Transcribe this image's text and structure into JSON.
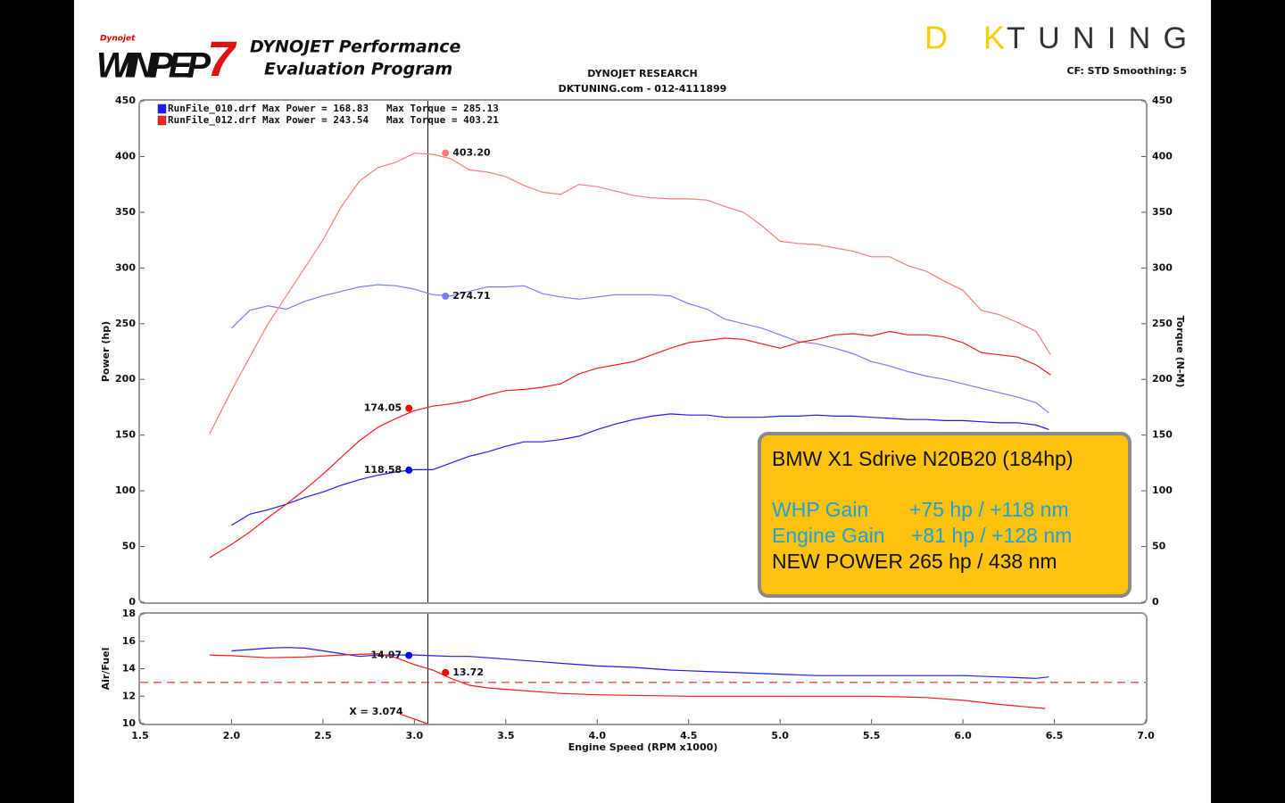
{
  "header": {
    "logo_small": "Dynojet",
    "logo": "WINPEP",
    "logo_number": "7",
    "program_1": "DYNOJET Performance",
    "program_2": "Evaluation Program",
    "brand_1": "DK",
    "brand_2": "TUNING",
    "settings": "CF: STD  Smoothing: 5"
  },
  "chart_data": [
    {
      "type": "line",
      "title": "DYNOJET RESEARCH",
      "subtitle": "DKTUNING.com - 012-4111899",
      "ylabel": "Power (hp)",
      "y2label": "Torque (N-M)",
      "xlim": [
        1.5,
        7
      ],
      "ylim": [
        0,
        450
      ],
      "yticks": [
        0,
        50,
        100,
        150,
        200,
        250,
        300,
        350,
        400,
        450
      ],
      "y2lim": [
        0,
        450
      ],
      "y2ticks": [
        0,
        50,
        100,
        150,
        200,
        250,
        300,
        350,
        400,
        450
      ],
      "cursor": 3.074,
      "legend": [
        {
          "color": "#1a1aff",
          "power": "RunFile_010.drf Max Power = 168.83",
          "torque": "Max Torque = 285.13"
        },
        {
          "color": "#ff2020",
          "power": "RunFile_012.drf Max Power = 243.54",
          "torque": "Max Torque = 403.21"
        }
      ],
      "series": [
        {
          "color": "#1a1aff",
          "x": [
            2.0,
            2.1,
            2.2,
            2.3,
            2.4,
            2.5,
            2.6,
            2.7,
            2.8,
            2.9,
            3.0,
            3.1,
            3.2,
            3.3,
            3.4,
            3.5,
            3.6,
            3.7,
            3.8,
            3.9,
            4.0,
            4.1,
            4.2,
            4.3,
            4.4,
            4.5,
            4.6,
            4.7,
            4.8,
            4.9,
            5.0,
            5.1,
            5.2,
            5.3,
            5.4,
            5.5,
            5.6,
            5.7,
            5.8,
            5.9,
            6.0,
            6.1,
            6.2,
            6.3,
            6.4,
            6.47
          ],
          "values": [
            69,
            79,
            83,
            88,
            94,
            99,
            105,
            110,
            114,
            117,
            119,
            119,
            125,
            131,
            135,
            140,
            144,
            144,
            146,
            149,
            155,
            160,
            164,
            167,
            169,
            168,
            168,
            166,
            166,
            166,
            167,
            167,
            168,
            167,
            167,
            166,
            165,
            164,
            164,
            163,
            163,
            162,
            161,
            161,
            159,
            155
          ]
        },
        {
          "color": "#7a7aff",
          "axis": "y2",
          "x": [
            2.0,
            2.1,
            2.2,
            2.3,
            2.4,
            2.5,
            2.6,
            2.7,
            2.8,
            2.9,
            3.0,
            3.1,
            3.2,
            3.3,
            3.4,
            3.5,
            3.6,
            3.7,
            3.8,
            3.9,
            4.0,
            4.1,
            4.2,
            4.3,
            4.4,
            4.5,
            4.6,
            4.7,
            4.8,
            4.9,
            5.0,
            5.1,
            5.2,
            5.3,
            5.4,
            5.5,
            5.6,
            5.7,
            5.8,
            5.9,
            6.0,
            6.1,
            6.2,
            6.3,
            6.4,
            6.47
          ],
          "values": [
            246,
            262,
            266,
            263,
            270,
            275,
            279,
            283,
            285,
            284,
            281,
            276,
            275,
            279,
            283,
            283,
            284,
            277,
            274,
            272,
            274,
            276,
            276,
            276,
            275,
            268,
            263,
            254,
            250,
            246,
            240,
            234,
            232,
            228,
            223,
            216,
            212,
            207,
            203,
            200,
            196,
            192,
            188,
            184,
            179,
            170
          ]
        },
        {
          "color": "#ff1a1a",
          "x": [
            1.88,
            2.0,
            2.1,
            2.2,
            2.3,
            2.4,
            2.5,
            2.6,
            2.7,
            2.8,
            2.9,
            3.0,
            3.1,
            3.2,
            3.3,
            3.4,
            3.5,
            3.6,
            3.7,
            3.8,
            3.9,
            4.0,
            4.1,
            4.2,
            4.3,
            4.4,
            4.5,
            4.6,
            4.7,
            4.8,
            4.9,
            5.0,
            5.1,
            5.2,
            5.3,
            5.4,
            5.5,
            5.6,
            5.7,
            5.8,
            5.9,
            6.0,
            6.1,
            6.2,
            6.3,
            6.4,
            6.48
          ],
          "values": [
            40,
            52,
            63,
            76,
            88,
            101,
            115,
            130,
            145,
            157,
            165,
            172,
            176,
            178,
            181,
            186,
            190,
            191,
            193,
            196,
            205,
            210,
            213,
            216,
            222,
            228,
            233,
            235,
            237,
            236,
            232,
            228,
            233,
            236,
            240,
            241,
            239,
            243,
            240,
            240,
            238,
            233,
            224,
            222,
            220,
            213,
            204
          ]
        },
        {
          "color": "#ff7a7a",
          "axis": "y2",
          "x": [
            1.88,
            2.0,
            2.1,
            2.2,
            2.3,
            2.4,
            2.5,
            2.6,
            2.7,
            2.8,
            2.9,
            3.0,
            3.1,
            3.2,
            3.3,
            3.4,
            3.5,
            3.6,
            3.7,
            3.8,
            3.9,
            4.0,
            4.1,
            4.2,
            4.3,
            4.4,
            4.5,
            4.6,
            4.7,
            4.8,
            4.9,
            5.0,
            5.1,
            5.2,
            5.3,
            5.4,
            5.5,
            5.6,
            5.7,
            5.8,
            5.9,
            6.0,
            6.1,
            6.2,
            6.3,
            6.4,
            6.48
          ],
          "values": [
            151,
            190,
            220,
            250,
            275,
            300,
            325,
            355,
            378,
            390,
            395,
            403,
            402,
            398,
            388,
            386,
            382,
            374,
            368,
            366,
            375,
            373,
            369,
            365,
            363,
            362,
            362,
            361,
            355,
            350,
            338,
            324,
            322,
            321,
            318,
            315,
            310,
            310,
            302,
            297,
            288,
            280,
            262,
            258,
            251,
            243,
            222
          ]
        }
      ],
      "markers": [
        {
          "x": 3.17,
          "value": 403.2,
          "label": "403.20",
          "color": "#ff7a7a",
          "axis": "y2"
        },
        {
          "x": 3.17,
          "value": 274.71,
          "label": "274.71",
          "color": "#7a7aff",
          "axis": "y2"
        },
        {
          "x": 2.97,
          "value": 174.05,
          "label": "174.05",
          "color": "#ff0000"
        },
        {
          "x": 2.97,
          "value": 118.58,
          "label": "118.58",
          "color": "#0000ff"
        }
      ]
    },
    {
      "type": "line",
      "ylabel": "Air/Fuel",
      "xlabel": "Engine Speed (RPM x1000)",
      "xlim": [
        1.5,
        7
      ],
      "xticks": [
        1.5,
        {
          "value": 2,
          "label": "2.0"
        },
        2.5,
        {
          "value": 3,
          "label": "3.0"
        },
        3.5,
        {
          "value": 4,
          "label": "4.0"
        },
        4.5,
        {
          "value": 5,
          "label": "5.0"
        },
        5.5,
        {
          "value": 6,
          "label": "6.0"
        },
        6.5,
        {
          "value": 7,
          "label": "7.0"
        }
      ],
      "ylim": [
        10,
        18
      ],
      "yticks": [
        10,
        12,
        14,
        16,
        18
      ],
      "reference": 13,
      "reference_color": "#e00000",
      "cursor": {
        "value": 3.074,
        "label": "X = 3.074"
      },
      "series": [
        {
          "color": "#1a1aff",
          "x": [
            2.0,
            2.1,
            2.2,
            2.3,
            2.4,
            2.5,
            2.6,
            2.7,
            2.8,
            2.9,
            3.0,
            3.1,
            3.2,
            3.3,
            3.4,
            3.5,
            3.6,
            3.7,
            3.8,
            3.9,
            4.0,
            4.2,
            4.4,
            4.6,
            4.8,
            5.0,
            5.2,
            5.4,
            5.6,
            5.8,
            6.0,
            6.2,
            6.4,
            6.47
          ],
          "values": [
            15.3,
            15.4,
            15.5,
            15.55,
            15.5,
            15.3,
            15.1,
            14.9,
            15.0,
            15.0,
            15.0,
            14.95,
            14.9,
            14.9,
            14.8,
            14.7,
            14.6,
            14.5,
            14.4,
            14.3,
            14.2,
            14.1,
            13.9,
            13.8,
            13.7,
            13.6,
            13.5,
            13.5,
            13.5,
            13.5,
            13.5,
            13.4,
            13.3,
            13.4
          ]
        },
        {
          "color": "#ff1a1a",
          "x": [
            1.88,
            2.0,
            2.2,
            2.4,
            2.6,
            2.8,
            2.9,
            3.0,
            3.1,
            3.2,
            3.3,
            3.4,
            3.6,
            3.8,
            4.0,
            4.5,
            5.0,
            5.5,
            5.8,
            6.0,
            6.2,
            6.45
          ],
          "values": [
            15.0,
            14.95,
            14.8,
            14.85,
            15.0,
            15.1,
            14.8,
            14.3,
            13.9,
            13.3,
            12.8,
            12.6,
            12.4,
            12.2,
            12.1,
            12.0,
            12.0,
            12.0,
            11.9,
            11.7,
            11.4,
            11.1
          ]
        },
        {
          "color": "#ff1a1a",
          "x": [
            2.92,
            3.07
          ],
          "values": [
            10.7,
            10.0
          ]
        }
      ],
      "markers": [
        {
          "x": 2.97,
          "value": 14.97,
          "label": "14.97",
          "color": "#0000ff"
        },
        {
          "x": 3.17,
          "value": 13.72,
          "label": "13.72",
          "color": "#ff0000"
        }
      ]
    }
  ],
  "info_box": {
    "title": "BMW X1 Sdrive N20B20 (184hp)",
    "whp_label": "WHP Gain",
    "whp_value": "+75 hp / +118 nm",
    "engine_label": "Engine Gain",
    "engine_value": "+81 hp / +128 nm",
    "new_power": "NEW POWER  265 hp / 438 nm"
  }
}
